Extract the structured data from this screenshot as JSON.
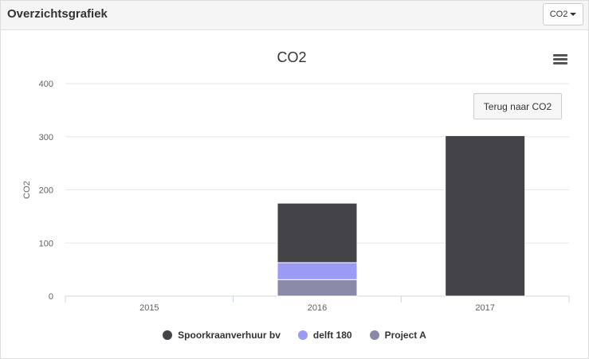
{
  "panel": {
    "title": "Overzichtsgrafiek",
    "dropdown_label": "CO2"
  },
  "chart_toolbar": {
    "menu_icon": "hamburger-menu-icon",
    "back_button_label": "Terug naar CO2"
  },
  "chart_data": {
    "type": "bar",
    "stacked": true,
    "title": "CO2",
    "xlabel": "",
    "ylabel": "CO2",
    "categories": [
      "2015",
      "2016",
      "2017"
    ],
    "ylim": [
      0,
      400
    ],
    "yticks": [
      0,
      100,
      200,
      300,
      400
    ],
    "grid": true,
    "legend_position": "bottom-center",
    "series": [
      {
        "name": "Spoorkraanverhuur bv",
        "color": "#434348",
        "values": [
          0,
          112,
          302
        ]
      },
      {
        "name": "delft 180",
        "color": "#9b9bf5",
        "values": [
          0,
          32,
          0
        ]
      },
      {
        "name": "Project A",
        "color": "#8a8aa8",
        "values": [
          0,
          31,
          0
        ]
      }
    ]
  }
}
